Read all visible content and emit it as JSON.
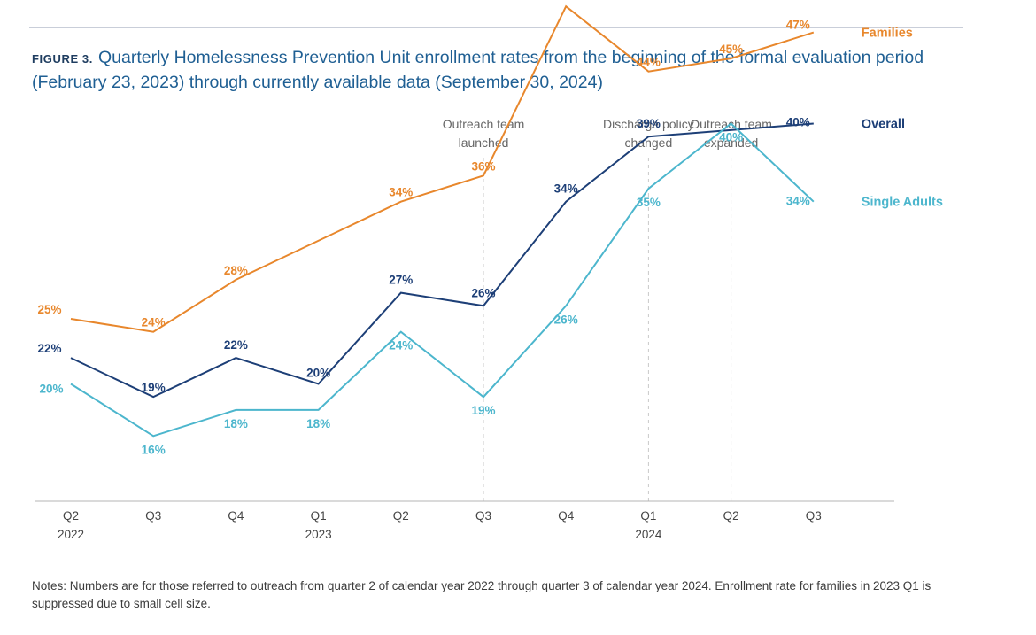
{
  "figure": {
    "label": "FIGURE 3.",
    "title": "Quarterly Homelessness Prevention Unit enrollment rates from the beginning of the formal evaluation period (February 23, 2023) through currently available data (September 30, 2024)"
  },
  "notes": "Notes: Numbers are for those referred to outreach from quarter 2 of calendar year 2022 through quarter 3 of calendar year 2024. Enrollment rate for families in 2023 Q1 is suppressed due to small cell size.",
  "colors": {
    "families": "#e8872c",
    "overall": "#1d3f77",
    "single_adults": "#4cb6cd",
    "axis": "#b5b5b5",
    "event_line": "#c8c8c8",
    "text": "#444444"
  },
  "chart_data": {
    "type": "line",
    "title": "",
    "xlabel": "",
    "ylabel": "",
    "categories": [
      "Q2",
      "Q3",
      "Q4",
      "Q1",
      "Q2",
      "Q3",
      "Q4",
      "Q1",
      "Q2",
      "Q3"
    ],
    "years": [
      "2022",
      "",
      "",
      "2023",
      "",
      "",
      "",
      "2024",
      "",
      ""
    ],
    "value_suffix": "%",
    "ylim": [
      0,
      60
    ],
    "grid": false,
    "legend": "labels at right end of lines",
    "series": [
      {
        "name": "Families",
        "key": "families",
        "values": [
          25,
          24,
          28,
          null,
          34,
          36,
          49,
          44,
          45,
          47
        ]
      },
      {
        "name": "Overall",
        "key": "overall",
        "values": [
          22,
          19,
          22,
          20,
          27,
          26,
          34,
          39,
          null,
          40
        ]
      },
      {
        "name": "Single Adults",
        "key": "single_adults",
        "values": [
          20,
          16,
          18,
          18,
          24,
          19,
          26,
          35,
          40,
          34
        ]
      }
    ],
    "annotations": [
      {
        "at": 5,
        "lines": [
          "Outreach team",
          "launched"
        ]
      },
      {
        "at": 7,
        "lines": [
          "Discharge policy",
          "changed"
        ]
      },
      {
        "at": 8,
        "lines": [
          "Outreach team",
          "expanded"
        ]
      }
    ]
  }
}
